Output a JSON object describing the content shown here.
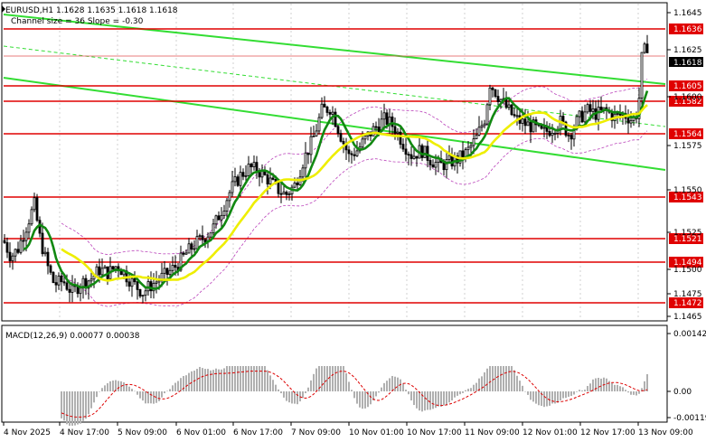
{
  "header": {
    "symbol_line": "EURUSD,H1  1.1628 1.1635 1.1618 1.1618",
    "channel_line": "Channel size = 36 Slope = -0.30"
  },
  "chart_data": {
    "type": "candlestick",
    "symbol": "EURUSD",
    "timeframe": "H1",
    "ohlc_last": {
      "open": 1.1628,
      "high": 1.1635,
      "low": 1.1618,
      "close": 1.1618
    },
    "price_axis": {
      "ticks": [
        "1.1645",
        "1.1625",
        "1.1600",
        "1.1575",
        "1.1550",
        "1.1525",
        "1.1500",
        "1.1475",
        "1.1465"
      ],
      "range": [
        1.1461,
        1.1656
      ]
    },
    "current_price": "1.1618",
    "current_price_second_line": "1.1621",
    "levels": [
      "1.1636",
      "1.1605",
      "1.1582",
      "1.1564",
      "1.1543",
      "1.1521",
      "1.1494",
      "1.1472"
    ],
    "time_axis": [
      "4 Nov 2025",
      "4 Nov 17:00",
      "5 Nov 09:00",
      "6 Nov 01:00",
      "6 Nov 17:00",
      "7 Nov 09:00",
      "10 Nov 01:00",
      "10 Nov 17:00",
      "11 Nov 09:00",
      "12 Nov 01:00",
      "12 Nov 17:00",
      "13 Nov 09:00"
    ],
    "channel": {
      "size": 36,
      "slope": -0.3
    },
    "macd": {
      "label": "MACD(12,26,9) 0.00077 0.00038",
      "ticks": [
        "0.00142",
        "0.00",
        "-0.00119"
      ],
      "main": 0.00077,
      "signal": 0.00038
    },
    "grid": true
  },
  "colors": {
    "bull_candle": "#000000",
    "bear_candle": "#000000",
    "level_line": "#e00000",
    "channel_line": "#33dd33",
    "ma_fast": "#118811",
    "ma_slow": "#eeee00",
    "envelope": "#bb44bb",
    "macd_hist": "#b0b0b0",
    "macd_signal": "#dd0000"
  }
}
